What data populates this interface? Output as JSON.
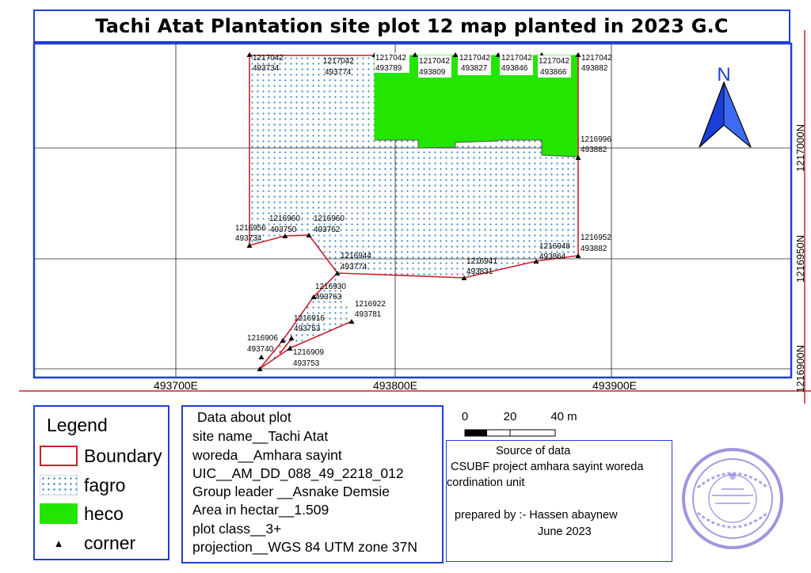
{
  "title": "Tachi Atat Plantation site plot 12 map planted in 2023 G.C",
  "north_arrow": {
    "label": "N",
    "icon": "north-arrow-icon",
    "color": "#1a3fd6"
  },
  "grid": {
    "x_labels": [
      "493700E",
      "493800E",
      "493900E"
    ],
    "y_labels": [
      "1217000N",
      "1216950N",
      "1216900N"
    ]
  },
  "coordinates": [
    {
      "n": "1217042",
      "e": "493734"
    },
    {
      "n": "1217042",
      "e": "493774"
    },
    {
      "n": "1217042",
      "e": "493789"
    },
    {
      "n": "1217042",
      "e": "493809"
    },
    {
      "n": "1217042",
      "e": "493827"
    },
    {
      "n": "1217042",
      "e": "493846"
    },
    {
      "n": "1217042",
      "e": "493866"
    },
    {
      "n": "1217042",
      "e": "493882"
    },
    {
      "n": "1216996",
      "e": "493882"
    },
    {
      "n": "1216952",
      "e": "493882"
    },
    {
      "n": "1216948",
      "e": "493864"
    },
    {
      "n": "1216941",
      "e": "493831"
    },
    {
      "n": "1216956",
      "e": "493734"
    },
    {
      "n": "1216960",
      "e": "493750"
    },
    {
      "n": "1216960",
      "e": "493762"
    },
    {
      "n": "1216944",
      "e": "493774"
    },
    {
      "n": "1216930",
      "e": "493763"
    },
    {
      "n": "1216922",
      "e": "493781"
    },
    {
      "n": "1216916",
      "e": "493753"
    },
    {
      "n": "1216906",
      "e": "493740"
    },
    {
      "n": "1216909",
      "e": "493753"
    }
  ],
  "legend": {
    "title": "Legend",
    "items": [
      {
        "label": "Boundary",
        "color": "#c8202c"
      },
      {
        "label": "fagro",
        "color": "#3a82c4"
      },
      {
        "label": "heco",
        "color": "#22e500"
      },
      {
        "label": "corner",
        "icon": "triangle-icon"
      }
    ]
  },
  "plot_data": {
    "heading": "Data about plot",
    "lines": [
      "site name__Tachi Atat",
      "woreda__Amhara sayint",
      "UIC__AM_DD_088_49_2218_012",
      "Group leader __Asnake Demsie",
      "Area in hectar__1.509",
      "plot class__3+",
      "projection__WGS 84 UTM zone 37N"
    ]
  },
  "scale_bar": {
    "labels": [
      "0",
      "20",
      "40 m"
    ]
  },
  "source": {
    "line1": "Source of data",
    "line2": "CSUBF project amhara sayint woreda",
    "line3": "cordination unit",
    "line4": "prepared by :- Hassen abaynew",
    "line5": "June 2023"
  },
  "stamp": {
    "icon": "official-seal-stamp",
    "color": "#8a7ad8"
  },
  "colors": {
    "frame": "#1f3fd6",
    "boundary": "#c8202c",
    "heco": "#22e500",
    "fagro_dots": "#3a82c4",
    "grid": "#222222"
  }
}
